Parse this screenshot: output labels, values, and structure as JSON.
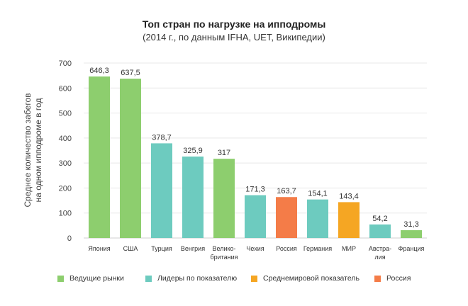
{
  "chart_data": {
    "type": "bar",
    "title": "Топ стран по нагрузке на ипподромы",
    "subtitle": "(2014 г., по данным IFHA, UET, Википедии)",
    "ylabel": [
      "Среднее количество забегов",
      "на одном ипподроме в год"
    ],
    "ylim": [
      0,
      700
    ],
    "yticks": [
      "0",
      "100",
      "200",
      "300",
      "400",
      "500",
      "600",
      "700"
    ],
    "grid": true,
    "categories": [
      [
        "Япония"
      ],
      [
        "США"
      ],
      [
        "Турция"
      ],
      [
        "Венгрия"
      ],
      [
        "Велико-",
        "британия"
      ],
      [
        "Чехия"
      ],
      [
        "Россия"
      ],
      [
        "Германия"
      ],
      [
        "МИР"
      ],
      [
        "Австра-",
        "лия"
      ],
      [
        "Франция"
      ]
    ],
    "values": [
      646.3,
      637.5,
      378.7,
      325.9,
      317,
      171.3,
      163.7,
      154.1,
      143.4,
      54.2,
      31.3
    ],
    "value_labels": [
      "646,3",
      "637,5",
      "378,7",
      "325,9",
      "317",
      "171,3",
      "163,7",
      "154,1",
      "143,4",
      "54,2",
      "31,3"
    ],
    "groups": [
      "leaders",
      "leaders",
      "indicator",
      "indicator",
      "leaders",
      "indicator",
      "russia",
      "indicator",
      "world",
      "indicator",
      "leaders"
    ],
    "colors": {
      "leaders": "#8dce6e",
      "indicator": "#6dcbbf",
      "world": "#f5a623",
      "russia": "#f47c48"
    },
    "legend_position": "bottom",
    "legend": [
      {
        "key": "leaders",
        "label": "Ведущие рынки"
      },
      {
        "key": "indicator",
        "label": "Лидеры по показателю"
      },
      {
        "key": "world",
        "label": "Среднемировой показатель"
      },
      {
        "key": "russia",
        "label": "Россия"
      }
    ]
  }
}
